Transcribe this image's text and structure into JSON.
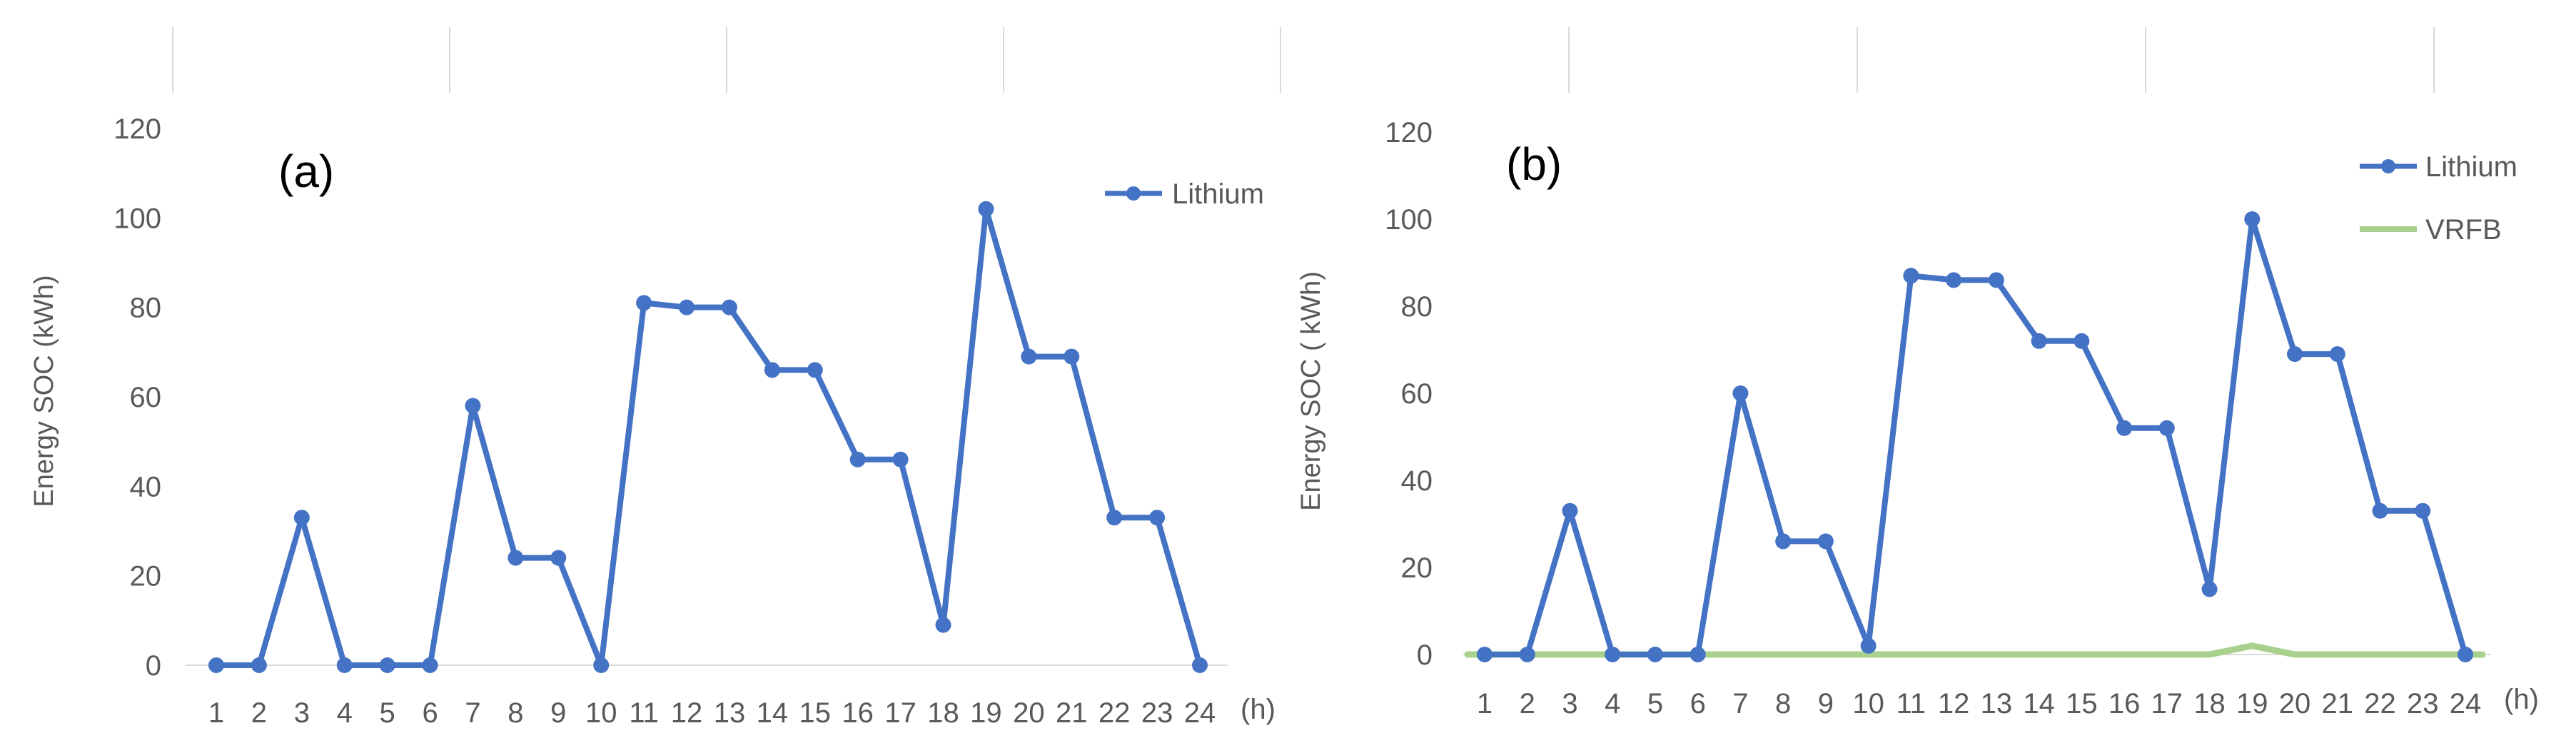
{
  "chart_data": [
    {
      "type": "line",
      "panel_label": "(a)",
      "ylabel": "Energy SOC (kWh)",
      "x_unit_label": "(h)",
      "x": [
        1,
        2,
        3,
        4,
        5,
        6,
        7,
        8,
        9,
        10,
        11,
        12,
        13,
        14,
        15,
        16,
        17,
        18,
        19,
        20,
        21,
        22,
        23,
        24
      ],
      "x_tick_labels": [
        "1",
        "2",
        "3",
        "4",
        "5",
        "6",
        "7",
        "8",
        "9",
        "10",
        "11",
        "12",
        "13",
        "14",
        "15",
        "16",
        "17",
        "18",
        "19",
        "20",
        "21",
        "22",
        "23",
        "24"
      ],
      "y_ticks": [
        0,
        20,
        40,
        60,
        80,
        100,
        120
      ],
      "y_tick_labels": [
        "0",
        "20",
        "40",
        "60",
        "80",
        "100",
        "120"
      ],
      "ylim": [
        0,
        120
      ],
      "grid": false,
      "legend_position": "top-right",
      "series": [
        {
          "name": "Lithium",
          "color": "#4472C4",
          "marker": "circle",
          "values": [
            0,
            0,
            33,
            0,
            0,
            0,
            58,
            24,
            24,
            0,
            81,
            80,
            80,
            66,
            66,
            46,
            46,
            9,
            102,
            69,
            69,
            33,
            33,
            0
          ]
        }
      ]
    },
    {
      "type": "line",
      "panel_label": "(b)",
      "ylabel": "Energy SOC ( kWh)",
      "x_unit_label": "(h)",
      "x": [
        1,
        2,
        3,
        4,
        5,
        6,
        7,
        8,
        9,
        10,
        11,
        12,
        13,
        14,
        15,
        16,
        17,
        18,
        19,
        20,
        21,
        22,
        23,
        24
      ],
      "x_tick_labels": [
        "1",
        "2",
        "3",
        "4",
        "5",
        "6",
        "7",
        "8",
        "9",
        "10",
        "11",
        "12",
        "13",
        "14",
        "15",
        "16",
        "17",
        "18",
        "19",
        "20",
        "21",
        "22",
        "23",
        "24"
      ],
      "y_ticks": [
        0,
        20,
        40,
        60,
        80,
        100,
        120
      ],
      "y_tick_labels": [
        "0",
        "20",
        "40",
        "60",
        "80",
        "100",
        "120"
      ],
      "ylim": [
        0,
        120
      ],
      "grid": false,
      "legend_position": "top-right",
      "series": [
        {
          "name": "Lithium",
          "color": "#4472C4",
          "marker": "circle",
          "values": [
            0,
            0,
            33,
            0,
            0,
            0,
            60,
            26,
            26,
            2,
            87,
            86,
            86,
            72,
            72,
            52,
            52,
            15,
            100,
            69,
            69,
            33,
            33,
            0
          ]
        },
        {
          "name": "VRFB",
          "color": "#A9D18E",
          "marker": "none",
          "values": [
            0,
            0,
            0,
            0,
            0,
            0,
            0,
            0,
            0,
            0,
            0,
            0,
            0,
            0,
            0,
            0,
            0,
            0,
            2,
            0,
            0,
            0,
            0,
            0
          ]
        }
      ]
    }
  ]
}
